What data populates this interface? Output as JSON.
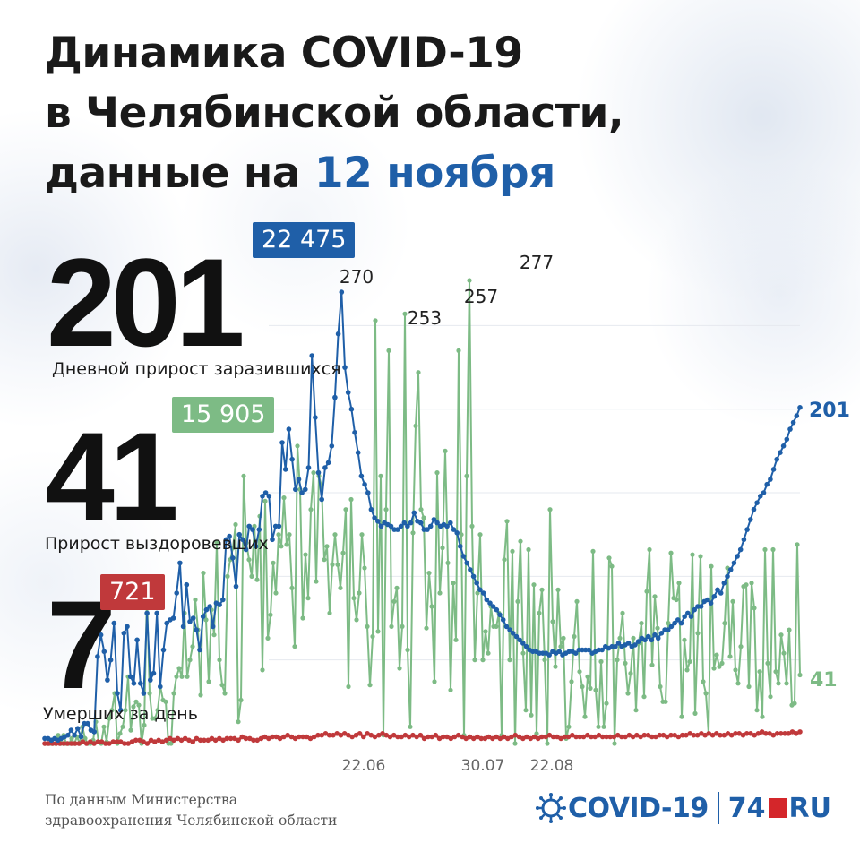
{
  "title": {
    "line1": "Динамика COVID-19",
    "line2": "в Челябинской области,",
    "line3_prefix": "данные на ",
    "line3_date": "12 ноября"
  },
  "stats": {
    "infected": {
      "daily": "201",
      "total": "22 475",
      "label": "Дневной прирост заразившихся"
    },
    "recovered": {
      "daily": "41",
      "total": "15 905",
      "label": "Прирост выздоровевших"
    },
    "deaths": {
      "daily": "7",
      "total": "721",
      "label": "Умерших за день"
    }
  },
  "footer": {
    "line1": "По данным Министерства",
    "line2": "здравоохранения Челябинской области"
  },
  "logo": {
    "covid": "COVID-19",
    "num": "74",
    "ru": "RU"
  },
  "colors": {
    "infected": "#1f5fa8",
    "recovered": "#7dbb85",
    "deaths": "#c0393b",
    "title_highlight": "#1f5fa8"
  },
  "chart_data": {
    "type": "line",
    "x_ticks": [
      "22.06",
      "30.07",
      "22.08"
    ],
    "annotations": [
      "270",
      "253",
      "257",
      "277"
    ],
    "end_labels": {
      "infected": "201",
      "recovered": "41"
    },
    "series": [
      {
        "key": "infected",
        "values": [
          3,
          3,
          2,
          3,
          2,
          3,
          4,
          5,
          8,
          5,
          9,
          4,
          12,
          12,
          8,
          7,
          52,
          65,
          55,
          38,
          50,
          72,
          30,
          20,
          66,
          70,
          40,
          36,
          62,
          36,
          30,
          78,
          38,
          42,
          78,
          34,
          56,
          72,
          74,
          75,
          90,
          108,
          70,
          95,
          73,
          75,
          68,
          56,
          76,
          80,
          82,
          70,
          84,
          83,
          86,
          122,
          124,
          111,
          94,
          125,
          122,
          116,
          130,
          128,
          118,
          128,
          148,
          150,
          148,
          122,
          130,
          130,
          180,
          164,
          188,
          170,
          152,
          158,
          150,
          152,
          165,
          232,
          195,
          162,
          146,
          165,
          168,
          178,
          207,
          245,
          270,
          225,
          210,
          200,
          186,
          174,
          160,
          155,
          150,
          140,
          135,
          133,
          130,
          132,
          131,
          130,
          128,
          128,
          130,
          132,
          130,
          132,
          138,
          133,
          132,
          128,
          128,
          130,
          134,
          132,
          130,
          131,
          130,
          132,
          128,
          126,
          118,
          112,
          108,
          104,
          100,
          96,
          92,
          90,
          86,
          84,
          82,
          80,
          77,
          74,
          70,
          68,
          66,
          64,
          62,
          60,
          58,
          56,
          55,
          55,
          54,
          54,
          54,
          53,
          55,
          54,
          55,
          53,
          54,
          55,
          55,
          54,
          56,
          56,
          56,
          56,
          54,
          55,
          56,
          56,
          58,
          57,
          58,
          58,
          60,
          58,
          59,
          60,
          58,
          59,
          61,
          63,
          62,
          64,
          62,
          65,
          63,
          66,
          68,
          68,
          70,
          72,
          74,
          72,
          76,
          78,
          76,
          80,
          82,
          82,
          85,
          86,
          84,
          88,
          92,
          90,
          96,
          100,
          104,
          108,
          112,
          116,
          122,
          128,
          134,
          140,
          144,
          148,
          150,
          155,
          158,
          164,
          170,
          174,
          178,
          182,
          188,
          192,
          196,
          201
        ]
      },
      {
        "key": "recovered",
        "values": [
          0,
          0,
          0,
          0,
          0,
          5,
          0,
          5,
          0,
          0,
          3,
          0,
          4,
          0,
          10,
          3,
          0,
          0,
          2,
          13,
          1,
          0,
          10,
          1,
          15,
          20,
          30,
          0,
          6,
          10,
          20,
          40,
          8,
          22,
          25,
          23,
          0,
          11,
          90,
          30,
          15,
          15,
          20,
          34,
          26,
          25,
          0,
          0,
          30,
          40,
          45,
          40,
          78,
          40,
          50,
          58,
          86,
          68,
          29,
          102,
          74,
          37,
          80,
          65,
          120,
          50,
          35,
          30,
          100,
          110,
          117,
          131,
          13,
          26,
          160,
          120,
          110,
          100,
          130,
          98,
          136,
          44,
          145,
          63,
          77,
          108,
          90,
          125,
          118,
          147,
          119,
          125,
          93,
          58,
          178,
          152,
          75,
          113,
          87,
          140,
          162,
          97,
          160,
          154,
          110,
          118,
          78,
          107,
          125,
          107,
          93,
          114,
          140,
          34,
          146,
          87,
          74,
          90,
          125,
          105,
          70,
          35,
          64,
          253,
          67,
          160,
          5,
          140,
          235,
          70,
          85,
          93,
          45,
          70,
          257,
          56,
          10,
          126,
          190,
          222,
          140,
          135,
          69,
          102,
          82,
          37,
          162,
          90,
          117,
          175,
          108,
          32,
          96,
          62,
          235,
          125,
          5,
          160,
          277,
          130,
          50,
          90,
          125,
          50,
          67,
          54,
          82,
          70,
          70,
          78,
          5,
          110,
          133,
          50,
          115,
          0,
          85,
          121,
          54,
          20,
          116,
          17,
          95,
          6,
          78,
          92,
          50,
          0,
          140,
          73,
          46,
          92,
          58,
          63,
          3,
          10,
          37,
          64,
          85,
          43,
          34,
          16,
          40,
          33,
          115,
          32,
          10,
          49,
          10,
          24,
          111,
          106,
          0,
          50,
          63,
          78,
          48,
          30,
          42,
          63,
          20,
          60,
          72,
          28,
          91,
          116,
          47,
          88,
          69,
          34,
          25,
          25,
          72,
          114,
          87,
          86,
          96,
          16,
          62,
          44,
          49,
          113,
          18,
          66,
          112,
          37,
          30,
          6,
          106,
          45,
          53,
          46,
          48,
          72,
          105,
          52,
          85,
          44,
          36,
          58,
          94,
          95,
          34,
          96,
          81,
          20,
          43,
          16,
          116,
          48,
          28,
          116,
          43,
          36,
          65,
          54,
          36,
          68,
          23,
          24,
          119,
          41
        ]
      },
      {
        "key": "deaths",
        "values": [
          0,
          0,
          0,
          0,
          0,
          0,
          0,
          0,
          0,
          0,
          1,
          0,
          1,
          0,
          1,
          1,
          0,
          0,
          1,
          1,
          1,
          0,
          0,
          1,
          2,
          2,
          1,
          0,
          2,
          1,
          2,
          1,
          2,
          3,
          2,
          3,
          2,
          3,
          2,
          1,
          3,
          2,
          2,
          2,
          3,
          2,
          3,
          2,
          3,
          3,
          3,
          2,
          4,
          3,
          3,
          2,
          2,
          3,
          4,
          3,
          4,
          4,
          3,
          4,
          5,
          4,
          3,
          4,
          4,
          4,
          3,
          4,
          5,
          5,
          6,
          5,
          5,
          6,
          5,
          6,
          5,
          4,
          5,
          6,
          4,
          6,
          5,
          4,
          5,
          6,
          5,
          4,
          5,
          4,
          4,
          5,
          4,
          5,
          4,
          5,
          3,
          4,
          4,
          5,
          3,
          4,
          4,
          3,
          4,
          5,
          4,
          3,
          4,
          3,
          4,
          3,
          3,
          4,
          3,
          4,
          3,
          4,
          3,
          4,
          5,
          4,
          3,
          4,
          3,
          4,
          3,
          4,
          4,
          5,
          4,
          4,
          3,
          4,
          4,
          5,
          4,
          4,
          4,
          5,
          4,
          4,
          5,
          4,
          4,
          4,
          4,
          5,
          4,
          4,
          5,
          4,
          5,
          4,
          5,
          5,
          4,
          4,
          5,
          5,
          4,
          5,
          5,
          4,
          5,
          5,
          6,
          5,
          5,
          6,
          5,
          6,
          5,
          6,
          5,
          5,
          6,
          5,
          6,
          6,
          5,
          6,
          6,
          5,
          6,
          7,
          6,
          6,
          5,
          6,
          6,
          6,
          6,
          7,
          6,
          7
        ]
      }
    ],
    "ylim": [
      0,
      277
    ]
  }
}
